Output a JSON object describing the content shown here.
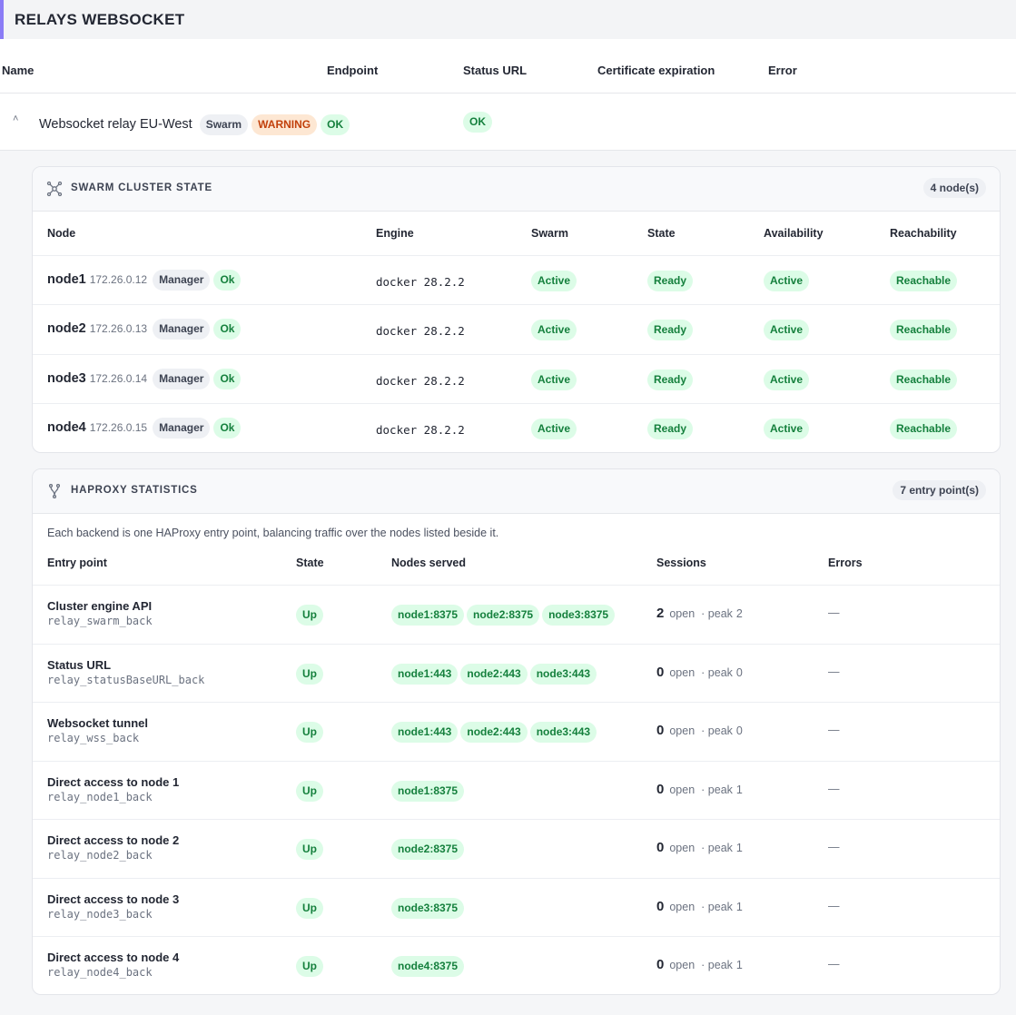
{
  "section": {
    "title": "RELAYS WEBSOCKET"
  },
  "columns": {
    "name": "Name",
    "endpoint": "Endpoint",
    "status_url": "Status URL",
    "cert": "Certificate expiration",
    "error": "Error"
  },
  "relay": {
    "name": "Websocket relay EU-West",
    "tag_swarm": "Swarm",
    "tag_warning": "WARNING",
    "tag_ok": "OK",
    "status_url": "OK",
    "chevron": "chevron-up-icon"
  },
  "swarm": {
    "title": "SWARM CLUSTER STATE",
    "count": "4 node(s)",
    "icon": "cluster-icon",
    "headers": {
      "node": "Node",
      "engine": "Engine",
      "swarm": "Swarm",
      "state": "State",
      "availability": "Availability",
      "reachability": "Reachability"
    },
    "nodes": [
      {
        "name": "node1",
        "ip": "172.26.0.12",
        "role": "Manager",
        "health": "Ok",
        "engine": "docker 28.2.2",
        "swarm": "Active",
        "state": "Ready",
        "availability": "Active",
        "reachability": "Reachable"
      },
      {
        "name": "node2",
        "ip": "172.26.0.13",
        "role": "Manager",
        "health": "Ok",
        "engine": "docker 28.2.2",
        "swarm": "Active",
        "state": "Ready",
        "availability": "Active",
        "reachability": "Reachable"
      },
      {
        "name": "node3",
        "ip": "172.26.0.14",
        "role": "Manager",
        "health": "Ok",
        "engine": "docker 28.2.2",
        "swarm": "Active",
        "state": "Ready",
        "availability": "Active",
        "reachability": "Reachable"
      },
      {
        "name": "node4",
        "ip": "172.26.0.15",
        "role": "Manager",
        "health": "Ok",
        "engine": "docker 28.2.2",
        "swarm": "Active",
        "state": "Ready",
        "availability": "Active",
        "reachability": "Reachable"
      }
    ]
  },
  "haproxy": {
    "title": "HAPROXY STATISTICS",
    "count": "7 entry point(s)",
    "icon": "fork-icon",
    "hint": "Each backend is one HAProxy entry point, balancing traffic over the nodes listed beside it.",
    "headers": {
      "entry": "Entry point",
      "state": "State",
      "nodes": "Nodes served",
      "sessions": "Sessions",
      "errors": "Errors"
    },
    "open_label": "open",
    "peak_label": "· peak",
    "entries": [
      {
        "title": "Cluster engine API",
        "code": "relay_swarm_back",
        "state": "Up",
        "nodes": [
          "node1:8375",
          "node2:8375",
          "node3:8375"
        ],
        "open": "2",
        "peak": "2",
        "errors": "—"
      },
      {
        "title": "Status URL",
        "code": "relay_statusBaseURL_back",
        "state": "Up",
        "nodes": [
          "node1:443",
          "node2:443",
          "node3:443"
        ],
        "open": "0",
        "peak": "0",
        "errors": "—"
      },
      {
        "title": "Websocket tunnel",
        "code": "relay_wss_back",
        "state": "Up",
        "nodes": [
          "node1:443",
          "node2:443",
          "node3:443"
        ],
        "open": "0",
        "peak": "0",
        "errors": "—"
      },
      {
        "title": "Direct access to node 1",
        "code": "relay_node1_back",
        "state": "Up",
        "nodes": [
          "node1:8375"
        ],
        "open": "0",
        "peak": "1",
        "errors": "—"
      },
      {
        "title": "Direct access to node 2",
        "code": "relay_node2_back",
        "state": "Up",
        "nodes": [
          "node2:8375"
        ],
        "open": "0",
        "peak": "1",
        "errors": "—"
      },
      {
        "title": "Direct access to node 3",
        "code": "relay_node3_back",
        "state": "Up",
        "nodes": [
          "node3:8375"
        ],
        "open": "0",
        "peak": "1",
        "errors": "—"
      },
      {
        "title": "Direct access to node 4",
        "code": "relay_node4_back",
        "state": "Up",
        "nodes": [
          "node4:8375"
        ],
        "open": "0",
        "peak": "1",
        "errors": "—"
      }
    ]
  }
}
